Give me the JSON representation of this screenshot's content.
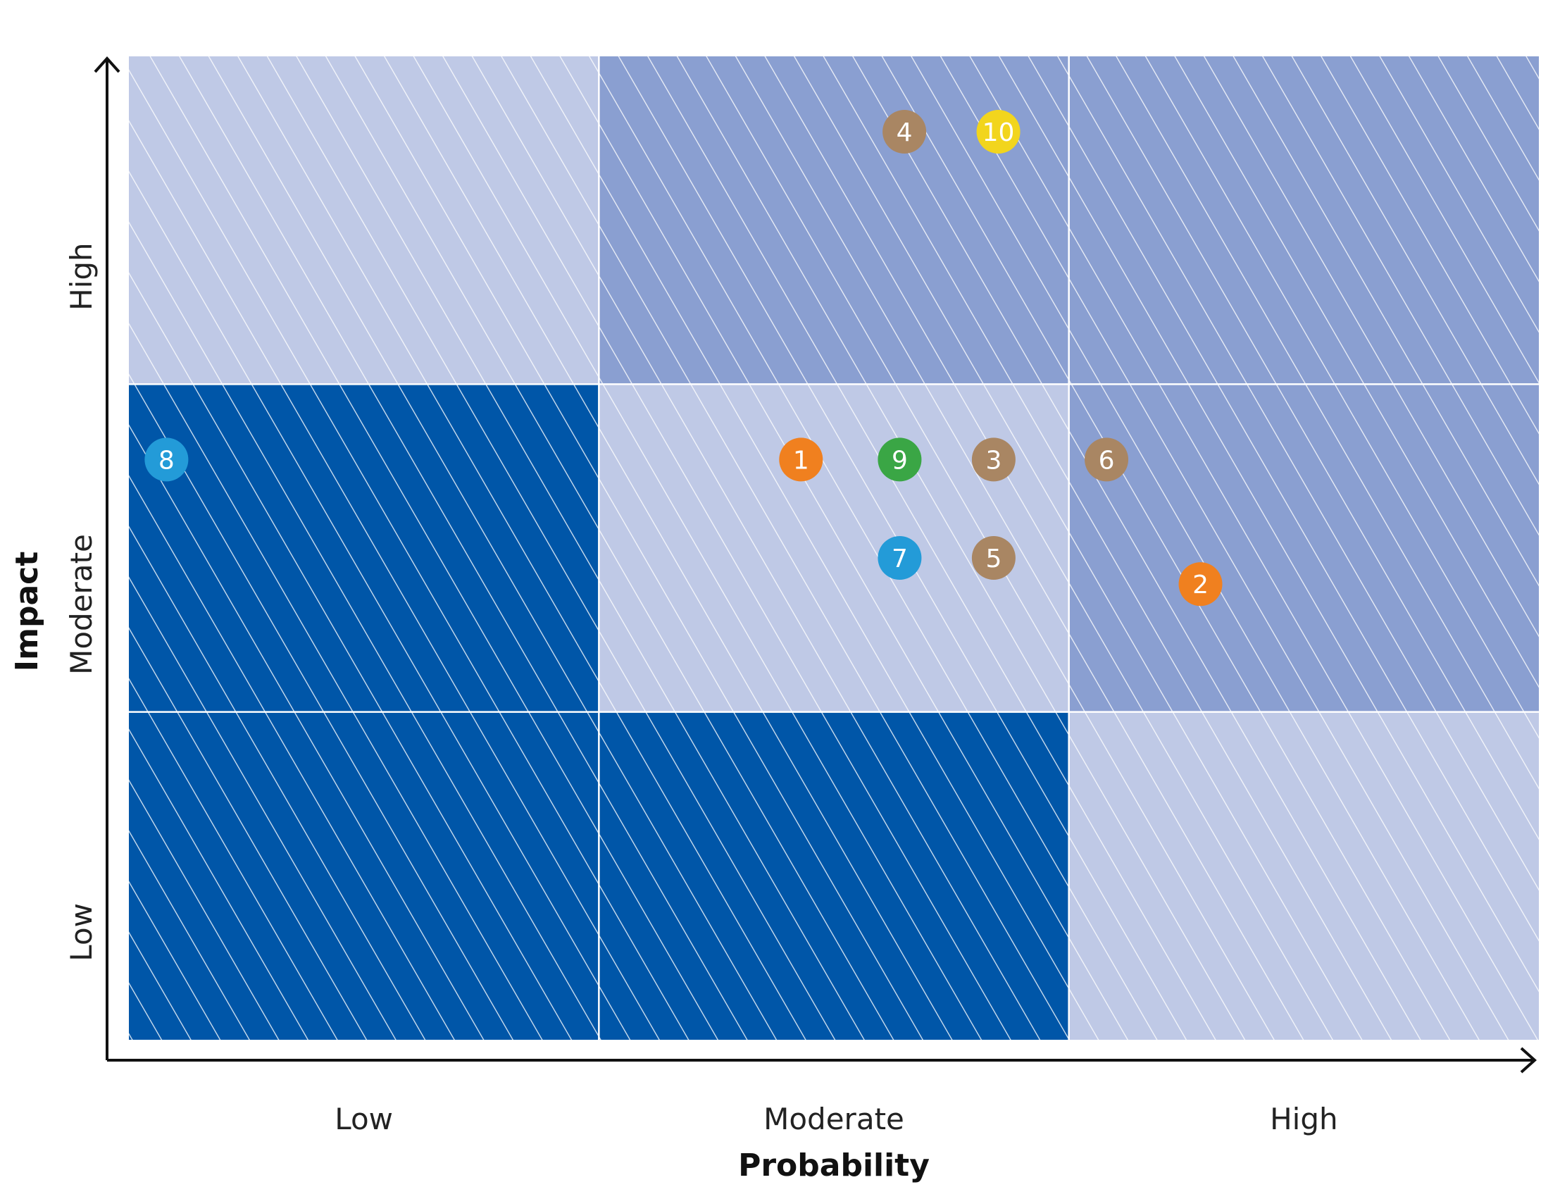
{
  "chart_data": {
    "type": "scatter",
    "xlabel": "Probability",
    "ylabel": "Impact",
    "x_categories": [
      "Low",
      "Moderate",
      "High"
    ],
    "y_categories": [
      "Low",
      "Moderate",
      "High"
    ],
    "xlim": [
      0,
      3
    ],
    "ylim": [
      0,
      3
    ],
    "grid": true,
    "cells": [
      {
        "x": "Low",
        "y": "High",
        "color": "#bfc9e6"
      },
      {
        "x": "Moderate",
        "y": "High",
        "color": "#8a9fd1"
      },
      {
        "x": "High",
        "y": "High",
        "color": "#8a9fd1"
      },
      {
        "x": "Low",
        "y": "Moderate",
        "color": "#0056a8"
      },
      {
        "x": "Moderate",
        "y": "Moderate",
        "color": "#bfc9e6"
      },
      {
        "x": "High",
        "y": "Moderate",
        "color": "#8a9fd1"
      },
      {
        "x": "Low",
        "y": "Low",
        "color": "#0056a8"
      },
      {
        "x": "Moderate",
        "y": "Low",
        "color": "#0056a8"
      },
      {
        "x": "High",
        "y": "Low",
        "color": "#bfc9e6"
      }
    ],
    "points": [
      {
        "label": "1",
        "x": 1.43,
        "y": 1.77,
        "color": "#f0801f"
      },
      {
        "label": "2",
        "x": 2.28,
        "y": 1.39,
        "color": "#f0801f"
      },
      {
        "label": "3",
        "x": 1.84,
        "y": 1.77,
        "color": "#a98663"
      },
      {
        "label": "4",
        "x": 1.65,
        "y": 2.77,
        "color": "#a98663"
      },
      {
        "label": "5",
        "x": 1.84,
        "y": 1.47,
        "color": "#a98663"
      },
      {
        "label": "6",
        "x": 2.08,
        "y": 1.77,
        "color": "#a98663"
      },
      {
        "label": "7",
        "x": 1.64,
        "y": 1.47,
        "color": "#239bd8"
      },
      {
        "label": "8",
        "x": 0.08,
        "y": 1.77,
        "color": "#239bd8"
      },
      {
        "label": "9",
        "x": 1.64,
        "y": 1.77,
        "color": "#3aa645"
      },
      {
        "label": "10",
        "x": 1.85,
        "y": 2.77,
        "color": "#f2d51d"
      }
    ]
  }
}
